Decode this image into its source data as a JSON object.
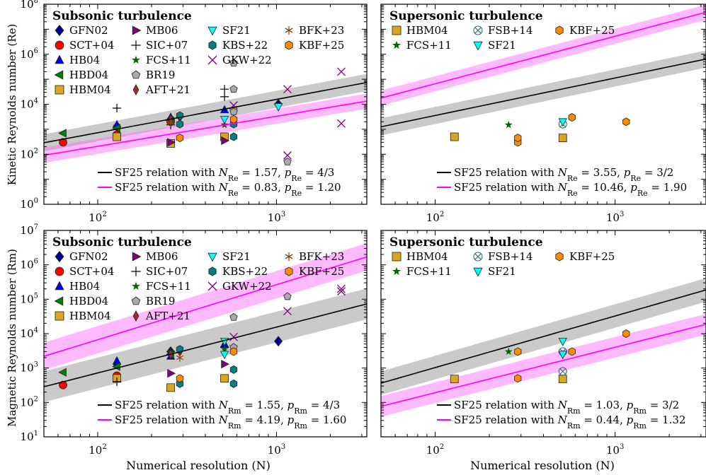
{
  "figure": {
    "xlabel": "Numerical resolution (N)",
    "ylabel_top": "Kinetic Reynolds number (Re)",
    "ylabel_bottom": "Magnetic Reynolds number (Rm)"
  },
  "colors": {
    "black_line": "#000000",
    "magenta_line": "#ff00ff",
    "grey_band": "#b3b3b3",
    "magenta_band": "#ff66ff",
    "overlap_band": "#b060b0"
  },
  "chart_data": [
    {
      "id": "re-sub",
      "type": "scatter",
      "title": "Subsonic turbulence",
      "xlabel": "Numerical resolution (N)",
      "ylabel": "Kinetic Reynolds number (Re)",
      "xscale": "log",
      "yscale": "log",
      "xlim": [
        50,
        3200
      ],
      "ylim": [
        1,
        100000000
      ],
      "xticks": [
        100,
        1000
      ],
      "xtick_labels": [
        "10^2",
        "10^3"
      ],
      "yticks": [
        1,
        100,
        10000,
        1000000,
        100000000
      ],
      "ytick_labels": [
        "10^0",
        "10^2",
        "10^4",
        "10^6",
        "10^8"
      ],
      "legend_position": "top",
      "legend": [
        {
          "label": "GFN02",
          "marker": "diamond",
          "color": "#00008b"
        },
        {
          "label": "SCT+04",
          "marker": "circle",
          "color": "#ff0000"
        },
        {
          "label": "HB04",
          "marker": "triangle-up",
          "color": "#0000ff"
        },
        {
          "label": "HBD04",
          "marker": "triangle-left",
          "color": "#008000"
        },
        {
          "label": "HBM04",
          "marker": "square",
          "color": "#daa520"
        },
        {
          "label": "MB06",
          "marker": "triangle-right",
          "color": "#800080"
        },
        {
          "label": "SIC+07",
          "marker": "plus",
          "color": "#000000"
        },
        {
          "label": "FCS+11",
          "marker": "star",
          "color": "#006400"
        },
        {
          "label": "BR19",
          "marker": "pentagon",
          "color": "#a9a9a9"
        },
        {
          "label": "AFT+21",
          "marker": "thin-diamond",
          "color": "#a52a2a"
        },
        {
          "label": "SF21",
          "marker": "triangle-down",
          "color": "#00ffff"
        },
        {
          "label": "KBS+22",
          "marker": "hexagon",
          "color": "#008080"
        },
        {
          "label": "GKW+22",
          "marker": "x",
          "color": "#800080"
        },
        {
          "label": "BFK+23",
          "marker": "asterisk",
          "color": "#8b4513"
        },
        {
          "label": "KBF+25",
          "marker": "hexagon",
          "color": "#ff8c00"
        }
      ],
      "series": [
        {
          "name": "GFN02",
          "points": [
            [
              128,
              1300
            ],
            [
              256,
              2500
            ],
            [
              1024,
              10000
            ]
          ]
        },
        {
          "name": "SCT+04",
          "points": [
            [
              64,
              300
            ],
            [
              128,
              600
            ],
            [
              256,
              2000
            ]
          ]
        },
        {
          "name": "HB04",
          "points": [
            [
              128,
              1500
            ],
            [
              256,
              3000
            ],
            [
              512,
              6000
            ]
          ]
        },
        {
          "name": "HBD04",
          "points": [
            [
              64,
              700
            ],
            [
              128,
              1100
            ],
            [
              256,
              2200
            ]
          ]
        },
        {
          "name": "HBM04",
          "points": [
            [
              128,
              500
            ],
            [
              256,
              270
            ],
            [
              512,
              500
            ]
          ]
        },
        {
          "name": "MB06",
          "points": [
            [
              256,
              300
            ],
            [
              512,
              350
            ]
          ]
        },
        {
          "name": "SIC+07",
          "points": [
            [
              128,
              7000
            ],
            [
              256,
              1500
            ],
            [
              512,
              40000
            ],
            [
              512,
              20000
            ]
          ]
        },
        {
          "name": "FCS+11",
          "points": [
            [
              256,
              2000
            ],
            [
              512,
              1500
            ]
          ]
        },
        {
          "name": "BR19",
          "points": [
            [
              576,
              450000
            ],
            [
              576,
              40000
            ],
            [
              576,
              5000
            ],
            [
              1152,
              50
            ]
          ]
        },
        {
          "name": "AFT+21",
          "points": [
            [
              256,
              2500
            ],
            [
              288,
              3000
            ]
          ]
        },
        {
          "name": "SF21",
          "points": [
            [
              512,
              2500
            ],
            [
              1024,
              8000
            ]
          ]
        },
        {
          "name": "KBS+22",
          "points": [
            [
              288,
              1600
            ],
            [
              288,
              3500
            ],
            [
              576,
              1600
            ],
            [
              576,
              500
            ]
          ]
        },
        {
          "name": "GKW+22",
          "points": [
            [
              576,
              9000
            ],
            [
              1152,
              40000
            ],
            [
              1152,
              90
            ],
            [
              2304,
              200000
            ],
            [
              2304,
              1700
            ]
          ]
        },
        {
          "name": "BFK+23",
          "points": [
            [
              256,
              1800
            ]
          ]
        },
        {
          "name": "KBF+25",
          "points": [
            [
              288,
              450
            ],
            [
              576,
              2500
            ]
          ]
        }
      ],
      "fits": [
        {
          "label": "SF25 relation with N_Re = 1.57, p_Re = 4/3",
          "color": "#000000",
          "N": 1.57,
          "p": 1.3333,
          "band_factor": 2.2
        },
        {
          "label": "SF25 relation with N_Re = 0.83, p_Re = 1.20",
          "color": "#ff00ff",
          "N": 0.83,
          "p": 1.2,
          "band_factor": 2.0
        }
      ]
    },
    {
      "id": "re-sup",
      "type": "scatter",
      "title": "Supersonic turbulence",
      "xscale": "log",
      "yscale": "log",
      "xlim": [
        50,
        3200
      ],
      "ylim": [
        1,
        100000000
      ],
      "xticks": [
        100,
        1000
      ],
      "xtick_labels": [
        "10^2",
        "10^3"
      ],
      "legend_position": "top",
      "legend": [
        {
          "label": "HBM04",
          "marker": "square",
          "color": "#daa520"
        },
        {
          "label": "FCS+11",
          "marker": "star",
          "color": "#006400"
        },
        {
          "label": "FSB+14",
          "marker": "circle-x",
          "color": "#2f6f6f"
        },
        {
          "label": "SF21",
          "marker": "triangle-down",
          "color": "#00ffff"
        },
        {
          "label": "KBF+25",
          "marker": "hexagon",
          "color": "#ff8c00"
        }
      ],
      "series": [
        {
          "name": "HBM04",
          "points": [
            [
              128,
              500
            ],
            [
              512,
              450
            ]
          ]
        },
        {
          "name": "FCS+11",
          "points": [
            [
              256,
              1500
            ]
          ]
        },
        {
          "name": "FSB+14",
          "points": [
            [
              512,
              1600
            ]
          ]
        },
        {
          "name": "SF21",
          "points": [
            [
              512,
              2000
            ]
          ]
        },
        {
          "name": "KBF+25",
          "points": [
            [
              288,
              300
            ],
            [
              288,
              450
            ],
            [
              576,
              3000
            ],
            [
              1152,
              2000
            ]
          ]
        }
      ],
      "fits": [
        {
          "label": "SF25 relation with N_Re = 3.55, p_Re = 3/2",
          "color": "#000000",
          "N": 3.55,
          "p": 1.5,
          "band_factor": 2.2
        },
        {
          "label": "SF25 relation with N_Re = 10.46, p_Re = 1.90",
          "color": "#ff00ff",
          "N": 10.46,
          "p": 1.9,
          "band_factor": 2.0
        }
      ]
    },
    {
      "id": "rm-sub",
      "type": "scatter",
      "title": "Subsonic turbulence",
      "xlabel": "Numerical resolution (N)",
      "ylabel": "Magnetic Reynolds number (Rm)",
      "xscale": "log",
      "yscale": "log",
      "xlim": [
        50,
        3200
      ],
      "ylim": [
        10,
        10000000
      ],
      "xticks": [
        100,
        1000
      ],
      "xtick_labels": [
        "10^2",
        "10^3"
      ],
      "yticks": [
        10,
        100,
        1000,
        10000,
        100000,
        1000000,
        10000000
      ],
      "ytick_labels": [
        "10^1",
        "10^2",
        "10^3",
        "10^4",
        "10^5",
        "10^6",
        "10^7"
      ],
      "legend_position": "top",
      "legend": [
        {
          "label": "GFN02",
          "marker": "diamond",
          "color": "#00008b"
        },
        {
          "label": "SCT+04",
          "marker": "circle",
          "color": "#ff0000"
        },
        {
          "label": "HB04",
          "marker": "triangle-up",
          "color": "#0000ff"
        },
        {
          "label": "HBD04",
          "marker": "triangle-left",
          "color": "#008000"
        },
        {
          "label": "HBM04",
          "marker": "square",
          "color": "#daa520"
        },
        {
          "label": "MB06",
          "marker": "triangle-right",
          "color": "#800080"
        },
        {
          "label": "SIC+07",
          "marker": "plus",
          "color": "#000000"
        },
        {
          "label": "FCS+11",
          "marker": "star",
          "color": "#006400"
        },
        {
          "label": "BR19",
          "marker": "pentagon",
          "color": "#a9a9a9"
        },
        {
          "label": "AFT+21",
          "marker": "thin-diamond",
          "color": "#a52a2a"
        },
        {
          "label": "SF21",
          "marker": "triangle-down",
          "color": "#00ffff"
        },
        {
          "label": "KBS+22",
          "marker": "hexagon",
          "color": "#008080"
        },
        {
          "label": "GKW+22",
          "marker": "x",
          "color": "#800080"
        },
        {
          "label": "BFK+23",
          "marker": "asterisk",
          "color": "#8b4513"
        },
        {
          "label": "KBF+25",
          "marker": "hexagon",
          "color": "#ff8c00"
        }
      ],
      "series": [
        {
          "name": "GFN02",
          "points": [
            [
              128,
              1300
            ],
            [
              256,
              3000
            ],
            [
              1024,
              6000
            ]
          ]
        },
        {
          "name": "SCT+04",
          "points": [
            [
              64,
              320
            ],
            [
              128,
              600
            ]
          ]
        },
        {
          "name": "HB04",
          "points": [
            [
              128,
              1600
            ],
            [
              256,
              2200
            ],
            [
              512,
              5000
            ]
          ]
        },
        {
          "name": "HBD04",
          "points": [
            [
              64,
              750
            ],
            [
              128,
              1100
            ],
            [
              256,
              2500
            ]
          ]
        },
        {
          "name": "HBM04",
          "points": [
            [
              128,
              500
            ],
            [
              256,
              270
            ],
            [
              512,
              500
            ]
          ]
        },
        {
          "name": "MB06",
          "points": [
            [
              256,
              700
            ],
            [
              512,
              1300
            ]
          ]
        },
        {
          "name": "SIC+07",
          "points": [
            [
              128,
              400
            ],
            [
              256,
              3000
            ],
            [
              512,
              4000
            ]
          ]
        },
        {
          "name": "FCS+11",
          "points": [
            [
              256,
              3000
            ],
            [
              512,
              3500
            ]
          ]
        },
        {
          "name": "BR19",
          "points": [
            [
              576,
              30000
            ],
            [
              576,
              4000
            ],
            [
              1152,
              120000
            ]
          ]
        },
        {
          "name": "AFT+21",
          "points": [
            [
              256,
              2500
            ],
            [
              288,
              3000
            ]
          ]
        },
        {
          "name": "SF21",
          "points": [
            [
              512,
              6000
            ],
            [
              512,
              2500
            ]
          ]
        },
        {
          "name": "KBS+22",
          "points": [
            [
              288,
              350
            ],
            [
              288,
              3500
            ],
            [
              576,
              900
            ],
            [
              576,
              350
            ]
          ]
        },
        {
          "name": "GKW+22",
          "points": [
            [
              576,
              8000
            ],
            [
              1152,
              45000
            ],
            [
              2304,
              200000
            ],
            [
              2304,
              170000
            ]
          ]
        },
        {
          "name": "BFK+23",
          "points": [
            [
              288,
              2000
            ]
          ]
        },
        {
          "name": "KBF+25",
          "points": [
            [
              288,
              500
            ],
            [
              576,
              3000
            ]
          ]
        }
      ],
      "fits": [
        {
          "label": "SF25 relation with N_Rm = 1.55, p_Rm = 4/3",
          "color": "#000000",
          "N": 1.55,
          "p": 1.3333,
          "band_factor": 2.8
        },
        {
          "label": "SF25 relation with N_Rm = 4.19, p_Rm = 1.60",
          "color": "#ff00ff",
          "N": 4.19,
          "p": 1.6,
          "band_factor": 2.5
        }
      ]
    },
    {
      "id": "rm-sup",
      "type": "scatter",
      "title": "Supersonic turbulence",
      "xscale": "log",
      "yscale": "log",
      "xlim": [
        50,
        3200
      ],
      "ylim": [
        10,
        10000000
      ],
      "xticks": [
        100,
        1000
      ],
      "xtick_labels": [
        "10^2",
        "10^3"
      ],
      "legend_position": "top",
      "legend": [
        {
          "label": "HBM04",
          "marker": "square",
          "color": "#daa520"
        },
        {
          "label": "FCS+11",
          "marker": "star",
          "color": "#006400"
        },
        {
          "label": "FSB+14",
          "marker": "circle-x",
          "color": "#2f6f6f"
        },
        {
          "label": "SF21",
          "marker": "triangle-down",
          "color": "#00ffff"
        },
        {
          "label": "KBF+25",
          "marker": "hexagon",
          "color": "#ff8c00"
        }
      ],
      "series": [
        {
          "name": "HBM04",
          "points": [
            [
              128,
              480
            ],
            [
              512,
              480
            ]
          ]
        },
        {
          "name": "FCS+11",
          "points": [
            [
              256,
              3000
            ]
          ]
        },
        {
          "name": "FSB+14",
          "points": [
            [
              512,
              3000
            ],
            [
              512,
              800
            ]
          ]
        },
        {
          "name": "SF21",
          "points": [
            [
              512,
              6000
            ],
            [
              512,
              2500
            ]
          ]
        },
        {
          "name": "KBF+25",
          "points": [
            [
              288,
              3000
            ],
            [
              288,
              500
            ],
            [
              576,
              3000
            ],
            [
              1152,
              10000
            ]
          ]
        }
      ],
      "fits": [
        {
          "label": "SF25 relation with N_Rm = 1.03, p_Rm = 3/2",
          "color": "#000000",
          "N": 1.03,
          "p": 1.5,
          "band_factor": 2.2
        },
        {
          "label": "SF25 relation with N_Rm = 0.44, p_Rm = 1.32",
          "color": "#ff00ff",
          "N": 0.44,
          "p": 1.32,
          "band_factor": 2.0
        }
      ]
    }
  ]
}
